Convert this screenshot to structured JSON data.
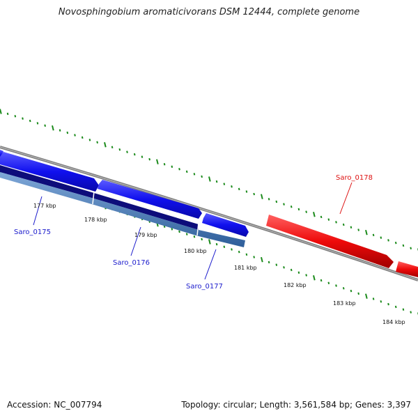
{
  "title": "Novosphingobium aromaticivorans DSM 12444, complete genome",
  "footer": {
    "accession": "Accession: NC_007794",
    "topology": "Topology: circular; Length: 3,561,584 bp; Genes: 3,397"
  },
  "ticks": [
    "177 kbp",
    "178 kbp",
    "179 kbp",
    "180 kbp",
    "181 kbp",
    "182 kbp",
    "183 kbp",
    "184 kbp"
  ],
  "genes": [
    {
      "label": "Saro_0175",
      "color": "#1a1acc"
    },
    {
      "label": "Saro_0176",
      "color": "#1a1acc"
    },
    {
      "label": "Saro_0177",
      "color": "#1a1acc"
    },
    {
      "label": "Saro_0178",
      "color": "#dd1111"
    }
  ],
  "colors": {
    "forward_gene": "#1010ee",
    "gene_track_dark": "#0d0d7a",
    "gene_track_light": "#4a7fbf",
    "reverse_gene": "#ee0a0a",
    "backbone": "#808080",
    "ticks": "#1a8a1a"
  }
}
